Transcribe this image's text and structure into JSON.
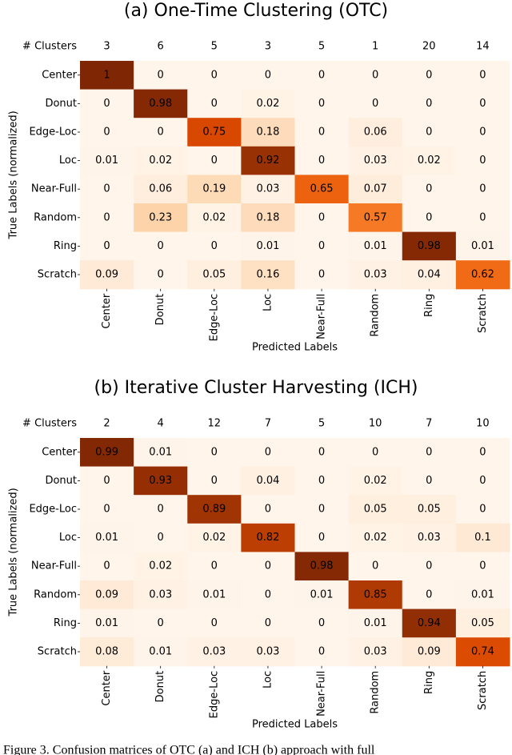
{
  "chart_data": [
    {
      "type": "heatmap",
      "title": "(a) One-Time Clustering (OTC)",
      "colormap": "Oranges",
      "clusters_label": "# Clusters",
      "clusters": [
        3,
        6,
        5,
        3,
        5,
        1,
        20,
        14
      ],
      "x_label": "Predicted Labels",
      "y_label": "True Labels (normalized)",
      "categories": [
        "Center",
        "Donut",
        "Edge-Loc",
        "Loc",
        "Near-Full",
        "Random",
        "Ring",
        "Scratch"
      ],
      "rows": [
        "Center",
        "Donut",
        "Edge-Loc",
        "Loc",
        "Near-Full",
        "Random",
        "Ring",
        "Scratch"
      ],
      "values": [
        [
          1,
          0,
          0,
          0,
          0,
          0,
          0,
          0
        ],
        [
          0,
          0.98,
          0,
          0.02,
          0,
          0,
          0,
          0
        ],
        [
          0,
          0,
          0.75,
          0.18,
          0,
          0.06,
          0,
          0
        ],
        [
          0.01,
          0.02,
          0,
          0.92,
          0,
          0.03,
          0.02,
          0
        ],
        [
          0,
          0.06,
          0.19,
          0.03,
          0.65,
          0.07,
          0,
          0
        ],
        [
          0,
          0.23,
          0.02,
          0.18,
          0,
          0.57,
          0,
          0
        ],
        [
          0,
          0,
          0,
          0.01,
          0,
          0.01,
          0.98,
          0.01
        ],
        [
          0.09,
          0,
          0.05,
          0.16,
          0,
          0.03,
          0.04,
          0.62
        ]
      ]
    },
    {
      "type": "heatmap",
      "title": "(b) Iterative Cluster Harvesting (ICH)",
      "colormap": "Oranges",
      "clusters_label": "# Clusters",
      "clusters": [
        2,
        4,
        12,
        7,
        5,
        10,
        7,
        10
      ],
      "x_label": "Predicted Labels",
      "y_label": "True Labels (normalized)",
      "categories": [
        "Center",
        "Donut",
        "Edge-Loc",
        "Loc",
        "Near-Full",
        "Random",
        "Ring",
        "Scratch"
      ],
      "rows": [
        "Center",
        "Donut",
        "Edge-Loc",
        "Loc",
        "Near-Full",
        "Random",
        "Ring",
        "Scratch"
      ],
      "values": [
        [
          0.99,
          0.01,
          0,
          0,
          0,
          0,
          0,
          0
        ],
        [
          0,
          0.93,
          0,
          0.04,
          0,
          0.02,
          0,
          0
        ],
        [
          0,
          0,
          0.89,
          0,
          0,
          0.05,
          0.05,
          0
        ],
        [
          0.01,
          0,
          0.02,
          0.82,
          0,
          0.02,
          0.03,
          0.1
        ],
        [
          0,
          0.02,
          0,
          0,
          0.98,
          0,
          0,
          0
        ],
        [
          0.09,
          0.03,
          0.01,
          0,
          0.01,
          0.85,
          0,
          0.01
        ],
        [
          0.01,
          0,
          0,
          0,
          0,
          0.01,
          0.94,
          0.05
        ],
        [
          0.08,
          0.01,
          0.03,
          0.03,
          0,
          0.03,
          0.09,
          0.74
        ]
      ]
    }
  ],
  "caption": "Figure 3.  Confusion matrices of OTC (a) and ICH (b) approach with full"
}
